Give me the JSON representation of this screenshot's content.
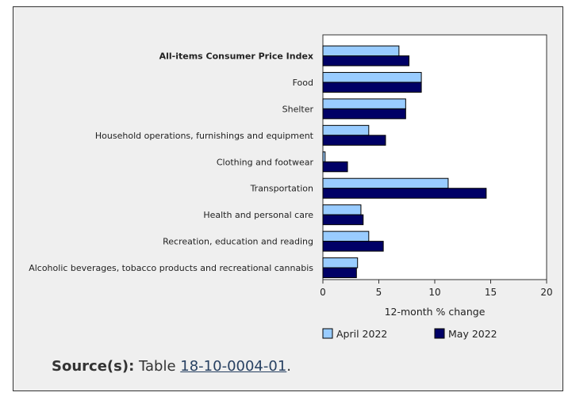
{
  "chart_data": {
    "type": "bar",
    "orientation": "horizontal",
    "categories": [
      "All-items Consumer Price Index",
      "Food",
      "Shelter",
      "Household operations, furnishings and equipment",
      "Clothing and footwear",
      "Transportation",
      "Health and personal care",
      "Recreation, education and reading",
      "Alcoholic beverages, tobacco products and recreational cannabis"
    ],
    "bold_category": "All-items Consumer Price Index",
    "series": [
      {
        "name": "April 2022",
        "color": "#99ccff",
        "values": [
          6.8,
          8.8,
          7.4,
          4.1,
          0.2,
          11.2,
          3.4,
          4.1,
          3.1
        ]
      },
      {
        "name": "May 2022",
        "color": "#000066",
        "values": [
          7.7,
          8.8,
          7.4,
          5.6,
          2.2,
          14.6,
          3.6,
          5.4,
          3.0
        ]
      }
    ],
    "xlabel": "12-month % change",
    "xlim": [
      0,
      20
    ],
    "xticks": [
      "0",
      "5",
      "10",
      "15",
      "20"
    ],
    "grid": false,
    "legend_position": "bottom"
  },
  "source": {
    "label": "Source(s):",
    "prefix": "Table",
    "link_text": "18-10-0004-01",
    "suffix": "."
  }
}
